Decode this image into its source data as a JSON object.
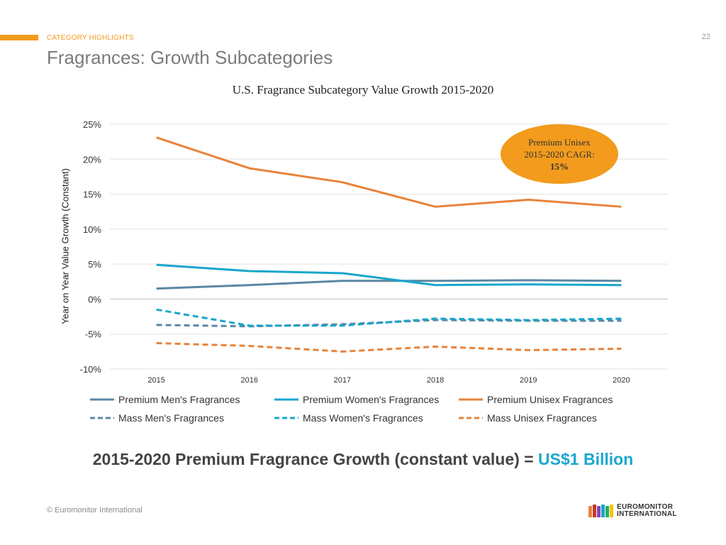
{
  "header": {
    "section": "CATEGORY HIGHLIGHTS",
    "page_number": "22",
    "title": "Fragrances: Growth Subcategories",
    "accent_color": "#f29b1d"
  },
  "callout": {
    "line1": "Premium Unisex",
    "line2": "2015-2020 CAGR:",
    "value": "15%",
    "color": "#f29b1d"
  },
  "headline": {
    "text": "2015-2020 Premium Fragrance Growth (constant value) = ",
    "highlight": "US$1 Billion"
  },
  "footer": {
    "copyright": "© Euromonitor International",
    "logo_line1": "EUROMONITOR",
    "logo_line2": "INTERNATIONAL"
  },
  "chart_data": {
    "type": "line",
    "title": "U.S. Fragrance Subcategory Value Growth 2015-2020",
    "xlabel": "",
    "ylabel": "Year on Year Value Growth (Constant)",
    "categories": [
      "2015",
      "2016",
      "2017",
      "2018",
      "2019",
      "2020"
    ],
    "ylim": [
      -10,
      25
    ],
    "yticks": [
      -10,
      -5,
      0,
      5,
      10,
      15,
      20,
      25
    ],
    "ytick_labels": [
      "-10%",
      "-5%",
      "0%",
      "5%",
      "10%",
      "15%",
      "20%",
      "25%"
    ],
    "grid": true,
    "legend_position": "bottom",
    "series": [
      {
        "name": "Premium Men's Fragrances",
        "values": [
          1.5,
          2.0,
          2.6,
          2.6,
          2.7,
          2.6
        ],
        "color": "#5b87a4",
        "dash": false
      },
      {
        "name": "Premium Women's Fragrances",
        "values": [
          4.9,
          4.0,
          3.7,
          2.0,
          2.1,
          2.0
        ],
        "color": "#18a6cc",
        "dash": false
      },
      {
        "name": "Premium Unisex Fragrances",
        "values": [
          23.1,
          18.7,
          16.7,
          13.2,
          14.2,
          13.2
        ],
        "color": "#e8833a",
        "dash": false
      },
      {
        "name": "Mass Men's Fragrances",
        "values": [
          -3.7,
          -3.9,
          -3.6,
          -3.0,
          -3.1,
          -3.1
        ],
        "color": "#5b87a4",
        "dash": true
      },
      {
        "name": "Mass Women's Fragrances",
        "values": [
          -1.5,
          -3.8,
          -3.8,
          -2.8,
          -3.0,
          -2.8
        ],
        "color": "#18a6cc",
        "dash": true
      },
      {
        "name": "Mass Unisex Fragrances",
        "values": [
          -6.3,
          -6.7,
          -7.5,
          -6.8,
          -7.3,
          -7.1
        ],
        "color": "#e8833a",
        "dash": true
      }
    ]
  }
}
